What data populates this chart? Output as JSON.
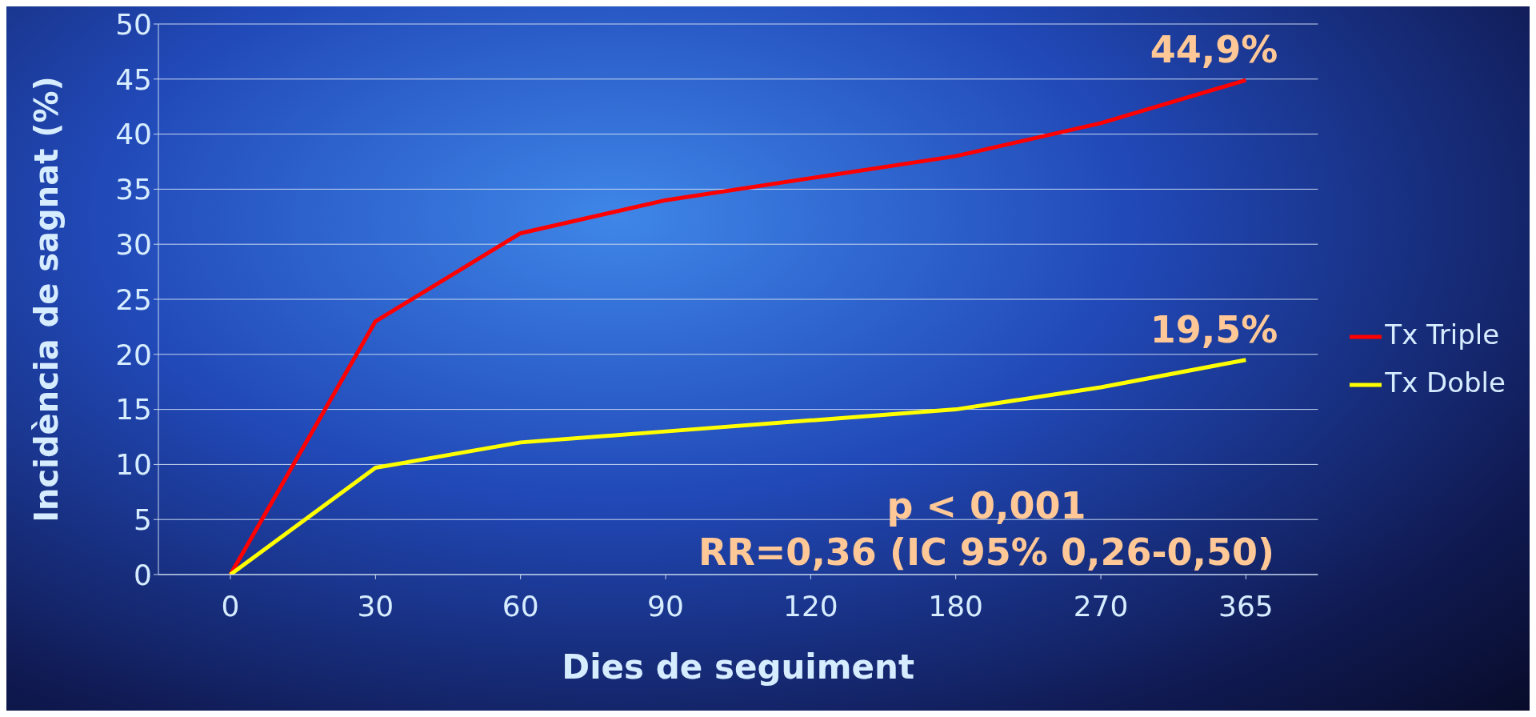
{
  "chart_data": {
    "type": "line",
    "xlabel": "Dies de seguiment",
    "ylabel": "Incidència de sagnat (%)",
    "categories": [
      "0",
      "30",
      "60",
      "90",
      "120",
      "180",
      "270",
      "365"
    ],
    "series": [
      {
        "name": "Tx Triple",
        "color": "#ff0000",
        "values": [
          0,
          23,
          31,
          34,
          36,
          38,
          41,
          44.9
        ],
        "value_labels": [
          null,
          null,
          null,
          null,
          null,
          null,
          null,
          "44,9%"
        ]
      },
      {
        "name": "Tx Doble",
        "color": "#ffff00",
        "values": [
          0,
          9.7,
          12,
          13,
          14,
          15,
          17,
          19.5
        ],
        "value_labels": [
          null,
          null,
          null,
          null,
          null,
          null,
          null,
          "19,5%"
        ]
      }
    ],
    "ylim": [
      0,
      50
    ],
    "yticks": [
      0,
      5,
      10,
      15,
      20,
      25,
      30,
      35,
      40,
      45,
      50
    ],
    "grid": "y",
    "legend": "right",
    "marker": "none",
    "line_style": "solid",
    "annotations": [
      "p < 0,001",
      "RR=0,36 (IC 95% 0,26-0,50)"
    ]
  }
}
